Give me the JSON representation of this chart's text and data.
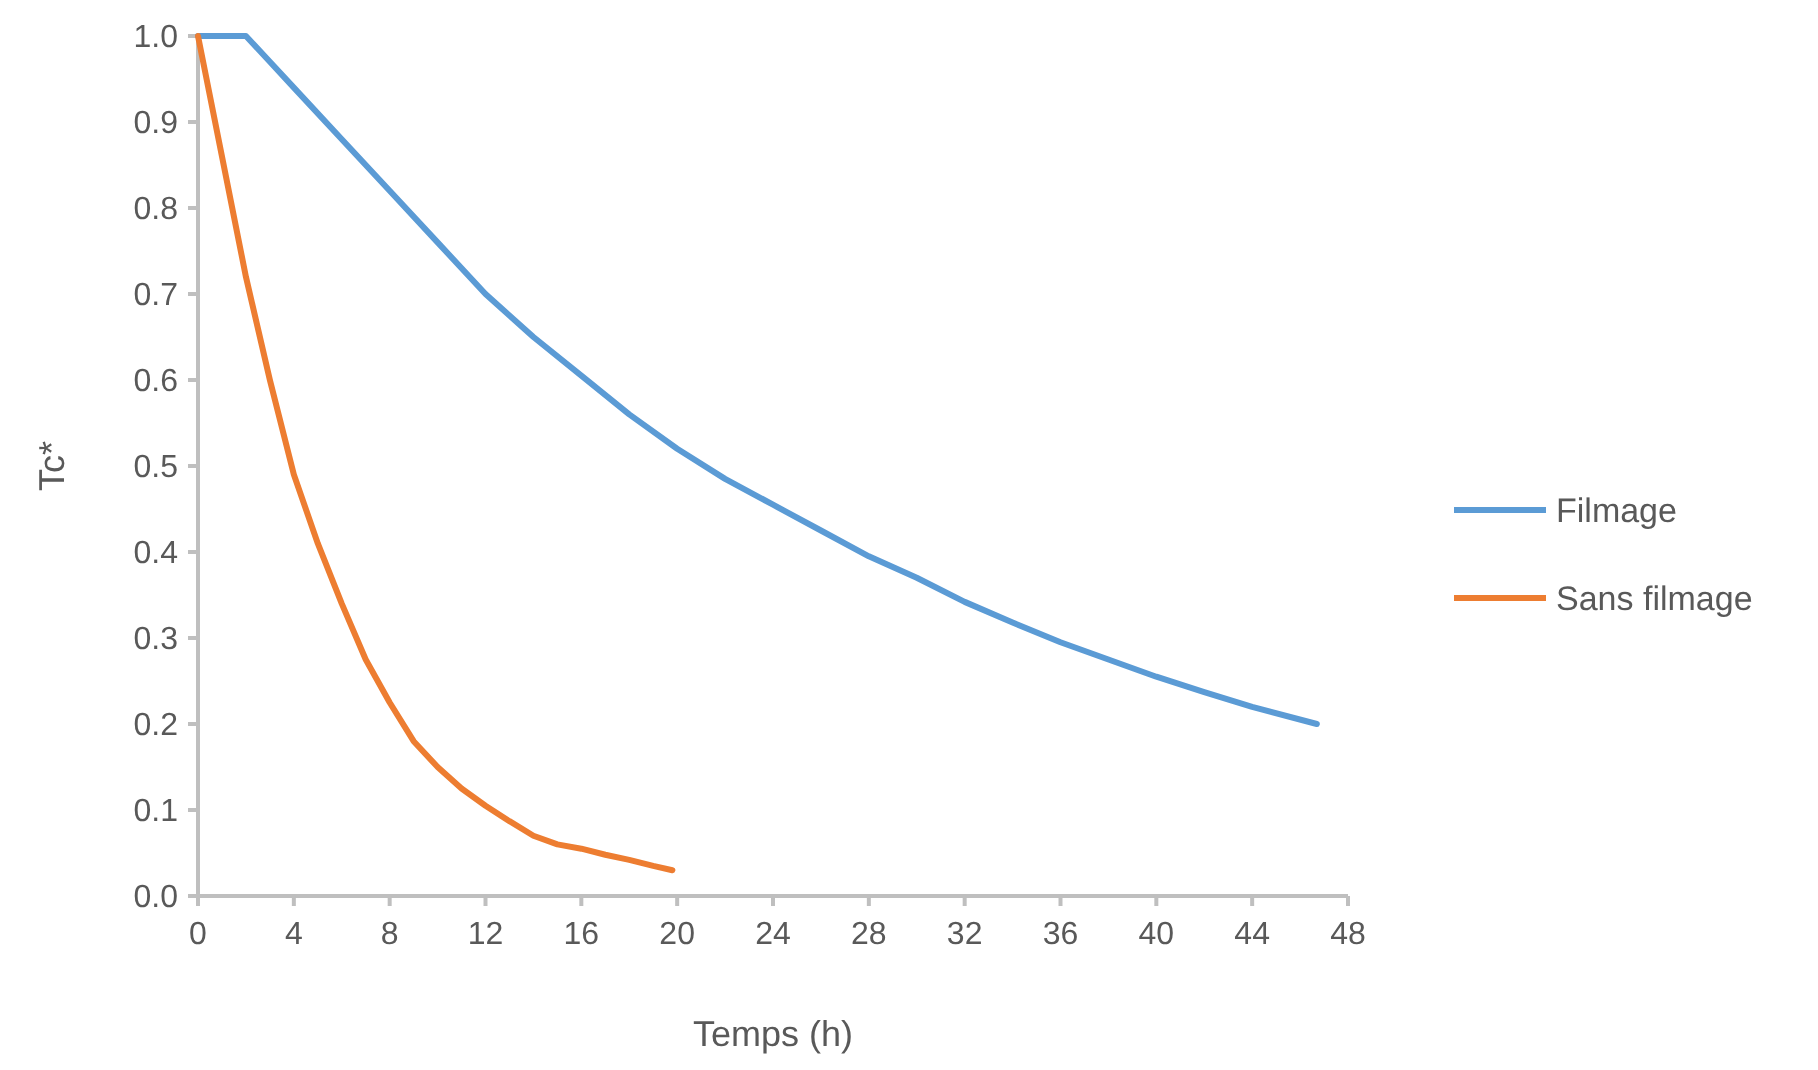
{
  "chart_data": {
    "type": "line",
    "xlabel": "Temps (h)",
    "ylabel": "Tc*",
    "xlim": [
      0,
      48
    ],
    "xticks": [
      0,
      4,
      8,
      12,
      16,
      20,
      24,
      28,
      32,
      36,
      40,
      44,
      48
    ],
    "ylim": [
      0,
      1
    ],
    "yticks": [
      {
        "value": 0,
        "label": "0.0"
      },
      0.1,
      0.2,
      0.3,
      0.4,
      0.5,
      0.6,
      0.7,
      0.8,
      0.9,
      {
        "value": 1,
        "label": "1.0"
      }
    ],
    "grid": false,
    "legend": "right",
    "marker": "none",
    "line_style": "solid",
    "series": [
      {
        "name": "Filmage",
        "color": "#5b9bd5",
        "x": [
          0,
          2,
          3,
          4,
          6,
          8,
          10,
          12,
          14,
          16,
          18,
          20,
          22,
          24,
          26,
          28,
          30,
          32,
          34,
          36,
          38,
          40,
          42,
          44,
          46.7
        ],
        "values": [
          1,
          1,
          0.97,
          0.94,
          0.88,
          0.82,
          0.76,
          0.7,
          0.65,
          0.605,
          0.56,
          0.52,
          0.485,
          0.455,
          0.425,
          0.395,
          0.37,
          0.342,
          0.318,
          0.295,
          0.275,
          0.255,
          0.237,
          0.22,
          0.2
        ]
      },
      {
        "name": "Sans filmage",
        "color": "#ed7d31",
        "x": [
          0,
          1,
          2,
          3,
          4,
          5,
          6,
          7,
          8,
          9,
          10,
          11,
          12,
          13,
          14,
          15,
          16,
          17,
          18,
          19,
          19.8
        ],
        "values": [
          1,
          0.86,
          0.72,
          0.6,
          0.49,
          0.41,
          0.34,
          0.275,
          0.225,
          0.18,
          0.15,
          0.125,
          0.105,
          0.087,
          0.07,
          0.06,
          0.055,
          0.048,
          0.042,
          0.035,
          0.03
        ]
      }
    ]
  }
}
